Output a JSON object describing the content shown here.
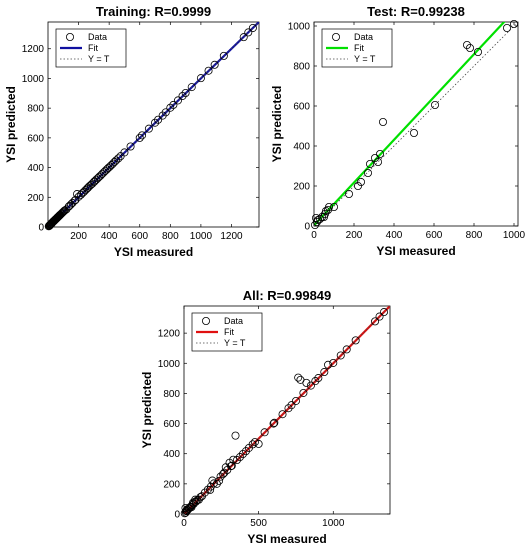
{
  "chart_data": [
    {
      "type": "scatter",
      "title": "Training: R=0.9999",
      "xlabel": "YSI measured",
      "ylabel": "YSI predicted",
      "xlim": [
        0,
        1380
      ],
      "ylim": [
        0,
        1380
      ],
      "xticks": [
        200,
        400,
        600,
        800,
        1000,
        1200
      ],
      "yticks": [
        0,
        200,
        400,
        600,
        800,
        1000,
        1200
      ],
      "legend": {
        "placement": "top-left",
        "entries": [
          "Data",
          "Fit",
          "Y = T"
        ]
      },
      "fit_color": "#1010a0",
      "fit_slope": 1.0,
      "fit_intercept": 0,
      "points": [
        [
          5,
          5
        ],
        [
          8,
          9
        ],
        [
          10,
          11
        ],
        [
          12,
          10
        ],
        [
          14,
          15
        ],
        [
          16,
          17
        ],
        [
          18,
          20
        ],
        [
          20,
          22
        ],
        [
          22,
          21
        ],
        [
          25,
          27
        ],
        [
          28,
          30
        ],
        [
          30,
          32
        ],
        [
          33,
          35
        ],
        [
          35,
          38
        ],
        [
          38,
          40
        ],
        [
          40,
          41
        ],
        [
          43,
          45
        ],
        [
          45,
          48
        ],
        [
          48,
          50
        ],
        [
          50,
          52
        ],
        [
          53,
          55
        ],
        [
          55,
          57
        ],
        [
          58,
          60
        ],
        [
          60,
          62
        ],
        [
          62,
          65
        ],
        [
          65,
          67
        ],
        [
          68,
          70
        ],
        [
          70,
          72
        ],
        [
          73,
          75
        ],
        [
          75,
          78
        ],
        [
          78,
          80
        ],
        [
          80,
          82
        ],
        [
          85,
          87
        ],
        [
          90,
          92
        ],
        [
          95,
          97
        ],
        [
          100,
          102
        ],
        [
          105,
          107
        ],
        [
          110,
          112
        ],
        [
          120,
          118
        ],
        [
          135,
          137
        ],
        [
          140,
          142
        ],
        [
          150,
          152
        ],
        [
          160,
          162
        ],
        [
          175,
          178
        ],
        [
          180,
          182
        ],
        [
          190,
          222
        ],
        [
          200,
          203
        ],
        [
          215,
          217
        ],
        [
          225,
          228
        ],
        [
          235,
          237
        ],
        [
          245,
          248
        ],
        [
          255,
          258
        ],
        [
          262,
          265
        ],
        [
          270,
          274
        ],
        [
          280,
          283
        ],
        [
          290,
          292
        ],
        [
          300,
          303
        ],
        [
          305,
          308
        ],
        [
          315,
          318
        ],
        [
          325,
          328
        ],
        [
          335,
          338
        ],
        [
          345,
          347
        ],
        [
          355,
          358
        ],
        [
          365,
          368
        ],
        [
          375,
          378
        ],
        [
          385,
          388
        ],
        [
          395,
          398
        ],
        [
          405,
          407
        ],
        [
          415,
          417
        ],
        [
          425,
          427
        ],
        [
          435,
          438
        ],
        [
          445,
          448
        ],
        [
          460,
          462
        ],
        [
          475,
          477
        ],
        [
          500,
          502
        ],
        [
          540,
          542
        ],
        [
          600,
          600
        ],
        [
          615,
          617
        ],
        [
          660,
          662
        ],
        [
          700,
          702
        ],
        [
          720,
          722
        ],
        [
          750,
          750
        ],
        [
          770,
          772
        ],
        [
          800,
          803
        ],
        [
          820,
          822
        ],
        [
          850,
          852
        ],
        [
          880,
          882
        ],
        [
          900,
          902
        ],
        [
          940,
          942
        ],
        [
          1000,
          1002
        ],
        [
          1050,
          1052
        ],
        [
          1090,
          1092
        ],
        [
          1150,
          1152
        ],
        [
          1280,
          1278
        ],
        [
          1310,
          1310
        ],
        [
          1340,
          1340
        ]
      ]
    },
    {
      "type": "scatter",
      "title": "Test: R=0.99238",
      "xlabel": "YSI measured",
      "ylabel": "YSI predicted",
      "xlim": [
        0,
        1020
      ],
      "ylim": [
        0,
        1020
      ],
      "xticks": [
        0,
        200,
        400,
        600,
        800,
        1000
      ],
      "yticks": [
        0,
        200,
        400,
        600,
        800,
        1000
      ],
      "legend": {
        "placement": "top-left",
        "entries": [
          "Data",
          "Fit",
          "Y = T"
        ]
      },
      "fit_color": "#00e000",
      "fit_slope": 1.07,
      "fit_intercept": 3,
      "points": [
        [
          5,
          5
        ],
        [
          10,
          40
        ],
        [
          15,
          20
        ],
        [
          20,
          30
        ],
        [
          30,
          35
        ],
        [
          40,
          45
        ],
        [
          50,
          45
        ],
        [
          55,
          60
        ],
        [
          60,
          75
        ],
        [
          70,
          80
        ],
        [
          75,
          95
        ],
        [
          100,
          95
        ],
        [
          175,
          160
        ],
        [
          220,
          200
        ],
        [
          235,
          220
        ],
        [
          270,
          265
        ],
        [
          280,
          310
        ],
        [
          305,
          340
        ],
        [
          320,
          320
        ],
        [
          330,
          360
        ],
        [
          345,
          520
        ],
        [
          500,
          465
        ],
        [
          605,
          605
        ],
        [
          765,
          905
        ],
        [
          780,
          890
        ],
        [
          820,
          870
        ],
        [
          965,
          990
        ],
        [
          1000,
          1010
        ]
      ]
    },
    {
      "type": "scatter",
      "title": "All: R=0.99849",
      "xlabel": "YSI measured",
      "ylabel": "YSI predicted",
      "xlim": [
        0,
        1380
      ],
      "ylim": [
        0,
        1380
      ],
      "xticks": [
        0,
        500,
        1000
      ],
      "yticks": [
        0,
        200,
        400,
        600,
        800,
        1000,
        1200
      ],
      "legend": {
        "placement": "top-left",
        "entries": [
          "Data",
          "Fit",
          "Y = T"
        ]
      },
      "fit_color": "#e01010",
      "fit_slope": 1.0,
      "fit_intercept": 0,
      "points": [
        [
          5,
          5
        ],
        [
          10,
          40
        ],
        [
          12,
          10
        ],
        [
          15,
          20
        ],
        [
          18,
          20
        ],
        [
          20,
          30
        ],
        [
          25,
          27
        ],
        [
          30,
          35
        ],
        [
          35,
          38
        ],
        [
          40,
          45
        ],
        [
          45,
          48
        ],
        [
          50,
          45
        ],
        [
          55,
          60
        ],
        [
          60,
          75
        ],
        [
          65,
          67
        ],
        [
          70,
          80
        ],
        [
          75,
          95
        ],
        [
          80,
          82
        ],
        [
          90,
          92
        ],
        [
          100,
          95
        ],
        [
          110,
          112
        ],
        [
          120,
          118
        ],
        [
          140,
          142
        ],
        [
          160,
          162
        ],
        [
          175,
          160
        ],
        [
          180,
          182
        ],
        [
          190,
          222
        ],
        [
          200,
          203
        ],
        [
          220,
          200
        ],
        [
          235,
          220
        ],
        [
          245,
          248
        ],
        [
          262,
          265
        ],
        [
          270,
          274
        ],
        [
          280,
          310
        ],
        [
          290,
          292
        ],
        [
          305,
          340
        ],
        [
          315,
          318
        ],
        [
          320,
          320
        ],
        [
          330,
          360
        ],
        [
          345,
          520
        ],
        [
          355,
          358
        ],
        [
          375,
          378
        ],
        [
          395,
          398
        ],
        [
          415,
          417
        ],
        [
          435,
          438
        ],
        [
          460,
          462
        ],
        [
          475,
          477
        ],
        [
          500,
          465
        ],
        [
          540,
          542
        ],
        [
          600,
          600
        ],
        [
          605,
          605
        ],
        [
          660,
          662
        ],
        [
          700,
          702
        ],
        [
          720,
          722
        ],
        [
          750,
          750
        ],
        [
          765,
          905
        ],
        [
          780,
          890
        ],
        [
          800,
          803
        ],
        [
          820,
          870
        ],
        [
          850,
          852
        ],
        [
          880,
          882
        ],
        [
          900,
          902
        ],
        [
          940,
          942
        ],
        [
          965,
          990
        ],
        [
          1000,
          1002
        ],
        [
          1050,
          1052
        ],
        [
          1090,
          1092
        ],
        [
          1150,
          1152
        ],
        [
          1280,
          1278
        ],
        [
          1310,
          1310
        ],
        [
          1340,
          1340
        ]
      ]
    }
  ]
}
